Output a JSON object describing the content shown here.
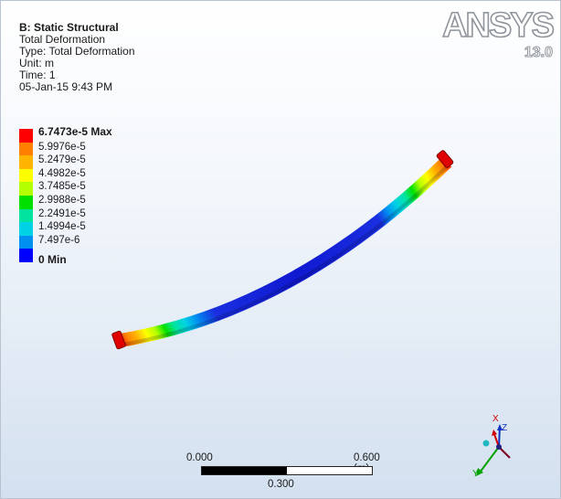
{
  "info": {
    "title": "B: Static Structural",
    "result": "Total Deformation",
    "type": "Type: Total Deformation",
    "unit": "Unit: m",
    "time": "Time: 1",
    "datetime": "05-Jan-15 9:43 PM"
  },
  "logo": {
    "brand": "ANSYS",
    "version": "13.0"
  },
  "legend": [
    {
      "label": "6.7473e-5 Max",
      "color": "#ff0000",
      "bold": true
    },
    {
      "label": "5.9976e-5",
      "color": "#ff7f00",
      "bold": false
    },
    {
      "label": "5.2479e-5",
      "color": "#ffb400",
      "bold": false
    },
    {
      "label": "4.4982e-5",
      "color": "#ffff00",
      "bold": false
    },
    {
      "label": "3.7485e-5",
      "color": "#b4ff00",
      "bold": false
    },
    {
      "label": "2.9988e-5",
      "color": "#00e000",
      "bold": false
    },
    {
      "label": "2.2491e-5",
      "color": "#00e4a0",
      "bold": false
    },
    {
      "label": "1.4994e-5",
      "color": "#00d2e6",
      "bold": false
    },
    {
      "label": "7.497e-6",
      "color": "#0090f0",
      "bold": false
    },
    {
      "label": "0 Min",
      "color": "#0000ff",
      "bold": true
    }
  ],
  "scale": {
    "left": "0.000",
    "right": "0.600 (m)",
    "mid": "0.300"
  },
  "triad": {
    "x": "X",
    "y": "Y",
    "z": "Z"
  }
}
